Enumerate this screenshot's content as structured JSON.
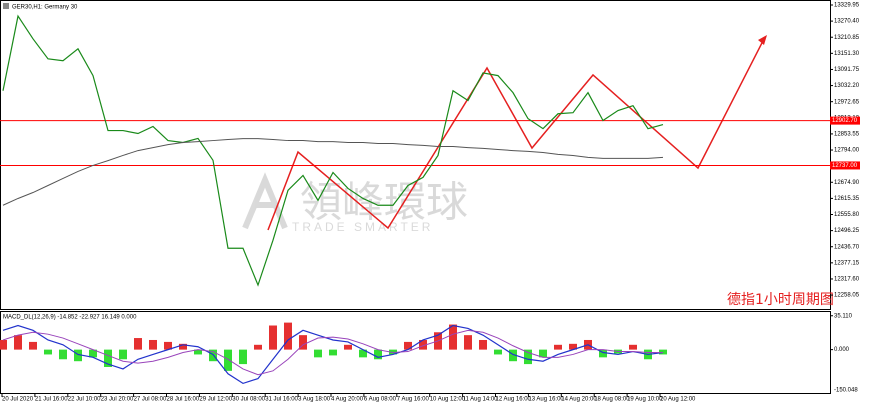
{
  "chart_data": [
    {
      "type": "line",
      "title": "GER30,H1: Germany 30",
      "annotation": "德指1小时周期图",
      "watermark": [
        "領峰環球",
        "TRADE SMARTER"
      ],
      "ylim": [
        12202.9,
        13344.7
      ],
      "yticks": [
        {
          "value": 13329.95,
          "label": "13329.95"
        },
        {
          "value": 13270.4,
          "label": "13270.40"
        },
        {
          "value": 13210.85,
          "label": "13210.85"
        },
        {
          "value": 13151.3,
          "label": "13151.30"
        },
        {
          "value": 13091.75,
          "label": "13091.75"
        },
        {
          "value": 13032.2,
          "label": "13032.20"
        },
        {
          "value": 12972.65,
          "label": "12972.65"
        },
        {
          "value": 12913.1,
          "label": "12913.10"
        },
        {
          "value": 12853.55,
          "label": "12853.55"
        },
        {
          "value": 12794,
          "label": "12794.00"
        },
        {
          "value": 12734.45,
          "label": "12734.45"
        },
        {
          "value": 12674.9,
          "label": "12674.90"
        },
        {
          "value": 12615.35,
          "label": "12615.35"
        },
        {
          "value": 12555.8,
          "label": "12555.80"
        },
        {
          "value": 12496.25,
          "label": "12496.25"
        },
        {
          "value": 12436.7,
          "label": "12436.70"
        },
        {
          "value": 12377.15,
          "label": "12377.15"
        },
        {
          "value": 12317.6,
          "label": "12317.60"
        },
        {
          "value": 12258.05,
          "label": "12258.05"
        }
      ],
      "price_lines": [
        {
          "value": 12902.7,
          "label": "12902.70"
        },
        {
          "value": 12737,
          "label": "12737.00"
        }
      ],
      "price_line_color": "#ff0000",
      "x_labels": [
        "20 Jul 2020",
        "21 Jul 16:00",
        "22 Jul 10:00",
        "23 Jul 20:00",
        "27 Jul 08:00",
        "28 Jul 16:00",
        "29 Jul 12:00",
        "30 Jul 08:00",
        "31 Jul 16:00",
        "3 Aug 18:00",
        "4 Aug 20:00",
        "6 Aug 08:00",
        "7 Aug 16:00",
        "10 Aug 12:00",
        "11 Aug 14:00",
        "12 Aug 16:00",
        "13 Aug 16:00",
        "14 Aug 20:00",
        "18 Aug 08:00",
        "19 Aug 10:00",
        "20 Aug 12:00"
      ],
      "series": [
        {
          "color": "#1a8a1a",
          "values": [
            13013,
            13289,
            13205,
            13131,
            13124,
            13168,
            13069,
            12866,
            12866,
            12855,
            12881,
            12829,
            12822,
            12837,
            12756,
            12431,
            12431,
            12295,
            12461,
            12645,
            12700,
            12608,
            12711,
            12652,
            12615,
            12590,
            12590,
            12663,
            12693,
            12774,
            13013,
            12977,
            13079,
            13069,
            13006,
            12910,
            12873,
            12928,
            12932,
            13006,
            12903,
            12940,
            12958,
            12873,
            12888
          ]
        },
        {
          "color": "#555555",
          "values": [
            12590,
            12615,
            12637,
            12663,
            12689,
            12715,
            12737,
            12755,
            12774,
            12792,
            12803,
            12814,
            12822,
            12825,
            12829,
            12833,
            12836,
            12836,
            12833,
            12829,
            12829,
            12825,
            12825,
            12822,
            12822,
            12818,
            12818,
            12814,
            12811,
            12807,
            12807,
            12803,
            12800,
            12796,
            12792,
            12789,
            12785,
            12778,
            12774,
            12767,
            12763,
            12763,
            12763,
            12763,
            12767
          ]
        }
      ]
    },
    {
      "type": "macd",
      "title": "MACD_DL(12,26,9) -14.852 -22.927 16.149 0.000",
      "min_label": "-150.048",
      "ylim": [
        -46,
        39
      ],
      "yticks": [
        {
          "value": 35.11,
          "label": "35.110"
        },
        {
          "value": 0,
          "label": "0.000"
        }
      ],
      "up_color": "#e53030",
      "down_color": "#33dd33",
      "histogram": [
        10,
        15,
        8,
        -5,
        -10,
        -12,
        -8,
        -18,
        -10,
        12,
        10,
        8,
        6,
        -5,
        -12,
        -22,
        -15,
        5,
        25,
        28,
        15,
        -8,
        -6,
        5,
        -8,
        -10,
        -5,
        8,
        10,
        18,
        26,
        15,
        10,
        -5,
        -12,
        -15,
        -8,
        5,
        6,
        10,
        -8,
        -4,
        5,
        -10,
        -5
      ],
      "series": [
        {
          "color": "#2233cc",
          "values": [
            20,
            25,
            20,
            10,
            5,
            -5,
            -8,
            -15,
            -20,
            -10,
            -5,
            0,
            5,
            3,
            -5,
            -25,
            -35,
            -30,
            -10,
            10,
            20,
            15,
            10,
            8,
            0,
            -8,
            -5,
            0,
            10,
            15,
            25,
            22,
            15,
            5,
            -5,
            -10,
            -12,
            -5,
            0,
            5,
            -3,
            -5,
            -2,
            -5,
            -3
          ]
        },
        {
          "color": "#9944bb",
          "values": [
            10,
            15,
            18,
            16,
            12,
            6,
            0,
            -6,
            -12,
            -14,
            -12,
            -8,
            -3,
            0,
            -2,
            -10,
            -20,
            -26,
            -22,
            -10,
            5,
            12,
            13,
            11,
            6,
            0,
            -3,
            -2,
            4,
            9,
            16,
            20,
            18,
            12,
            4,
            -3,
            -8,
            -8,
            -5,
            0,
            0,
            -2,
            -2,
            -3,
            -3
          ]
        }
      ]
    }
  ]
}
